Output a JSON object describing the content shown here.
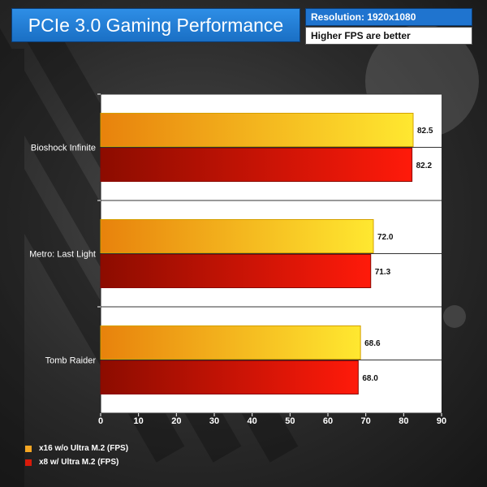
{
  "header": {
    "title": "PCIe 3.0 Gaming Performance",
    "resolution": "Resolution: 1920x1080",
    "note": "Higher FPS are better"
  },
  "colors": {
    "title_bg": "#1f74cf",
    "series1": "#f5a623",
    "series2": "#d81a0a",
    "plot_bg": "#ffffff"
  },
  "chart_data": {
    "type": "bar",
    "orientation": "horizontal",
    "categories": [
      "Bioshock Infinite",
      "Metro: Last Light",
      "Tomb Raider"
    ],
    "series": [
      {
        "name": "x16 w/o Ultra M.2 (FPS)",
        "values": [
          82.5,
          72.0,
          68.6
        ],
        "labels": [
          "82.5",
          "72.0",
          "68.6"
        ]
      },
      {
        "name": "x8 w/ Ultra M.2 (FPS)",
        "values": [
          82.2,
          71.3,
          68.0
        ],
        "labels": [
          "82.2",
          "71.3",
          "68.0"
        ]
      }
    ],
    "xlim": [
      0,
      90
    ],
    "xticks": [
      0,
      10,
      20,
      30,
      40,
      50,
      60,
      70,
      80,
      90
    ],
    "xlabel": "",
    "ylabel": "",
    "grid": true,
    "legend_position": "bottom-left"
  }
}
